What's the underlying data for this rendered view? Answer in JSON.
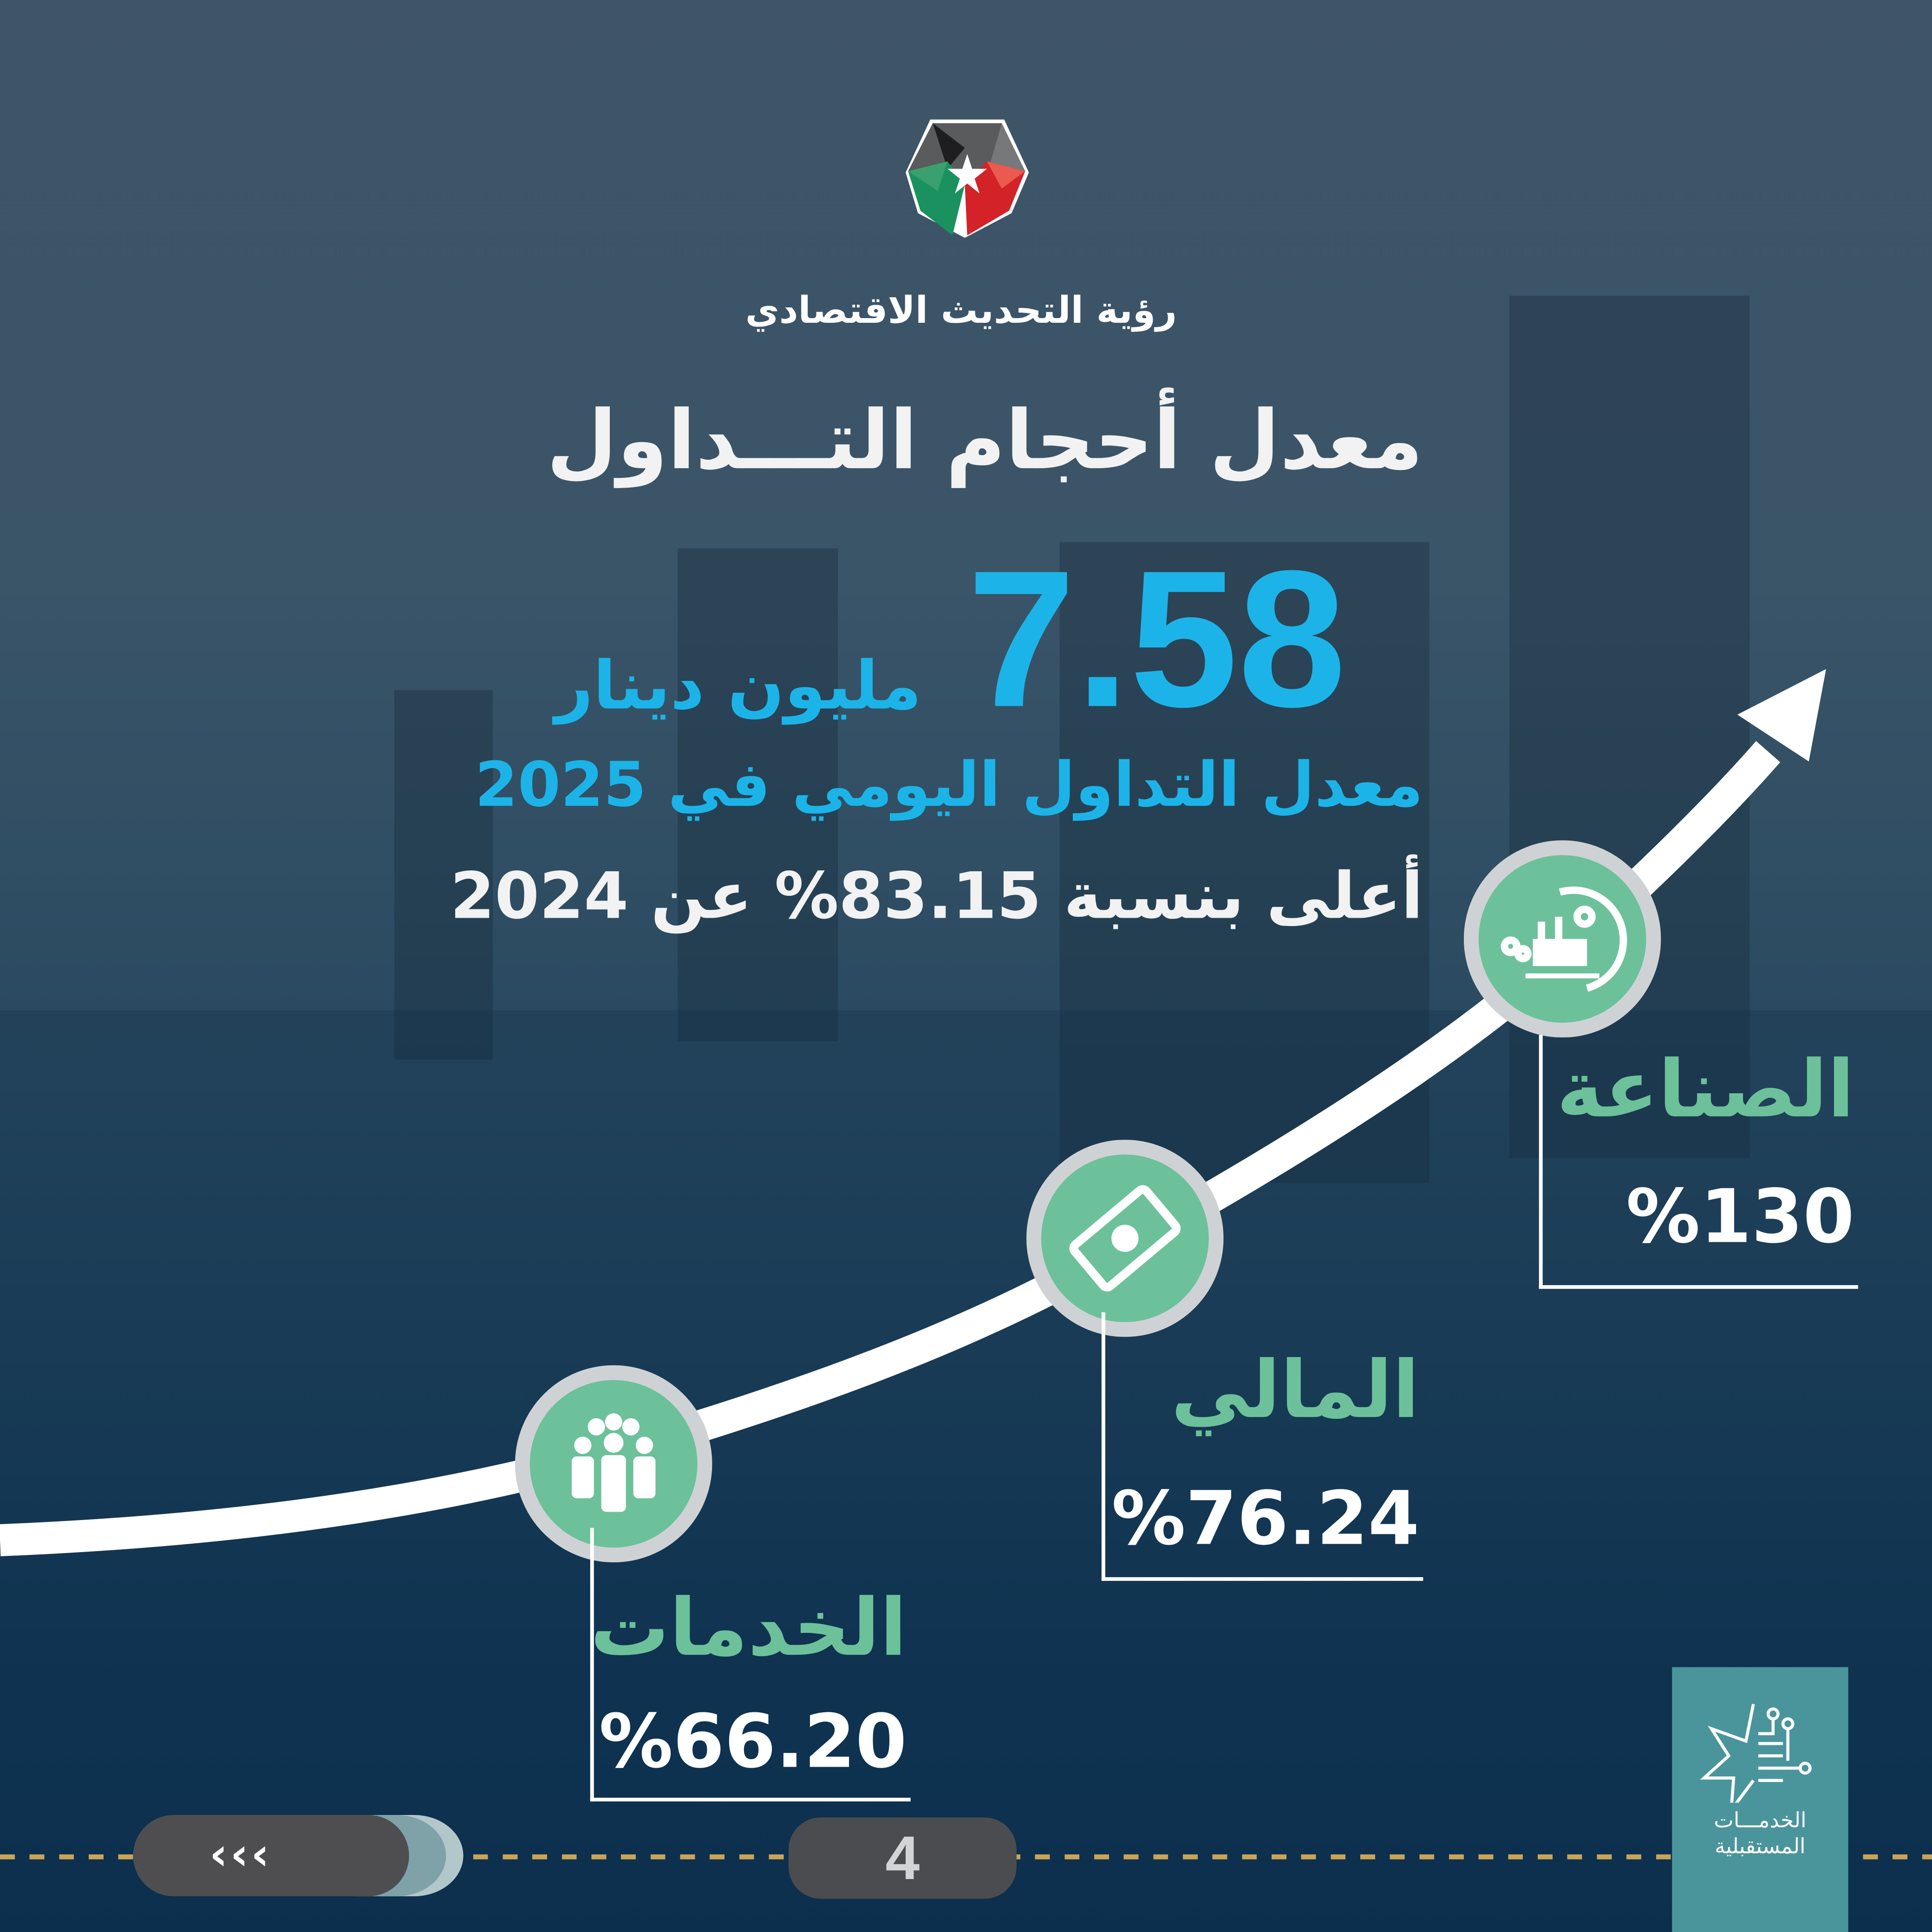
{
  "header": {
    "org_name": "رؤية التحديث الاقتصادي",
    "logo": "jordan-economic-modernization-vision-logo"
  },
  "headline": {
    "title": "معدل أحجام التـــداول",
    "value": "7.58",
    "unit": "مليون دينار",
    "caption": "معدل التداول اليومي في 2025",
    "change": "أعلى بنسبة 83.15% عن 2024"
  },
  "sectors": [
    {
      "name": "الخدمات",
      "value": "%66.20",
      "icon": "people-group-icon"
    },
    {
      "name": "المالي",
      "value": "%76.24",
      "icon": "banknote-icon"
    },
    {
      "name": "الصناعة",
      "value": "%130",
      "icon": "factory-gear-icon"
    }
  ],
  "footer": {
    "prev_icon": "triple-chevron-left-icon",
    "page_number": "4",
    "brand": "الخدمـــات المستقبلية"
  },
  "colors": {
    "accent": "#1cb4e8",
    "sector_green": "#6cc19a",
    "ring": "#cfd2d4",
    "gold_dash": "#c9a556",
    "brand_box": "#4a959b"
  }
}
